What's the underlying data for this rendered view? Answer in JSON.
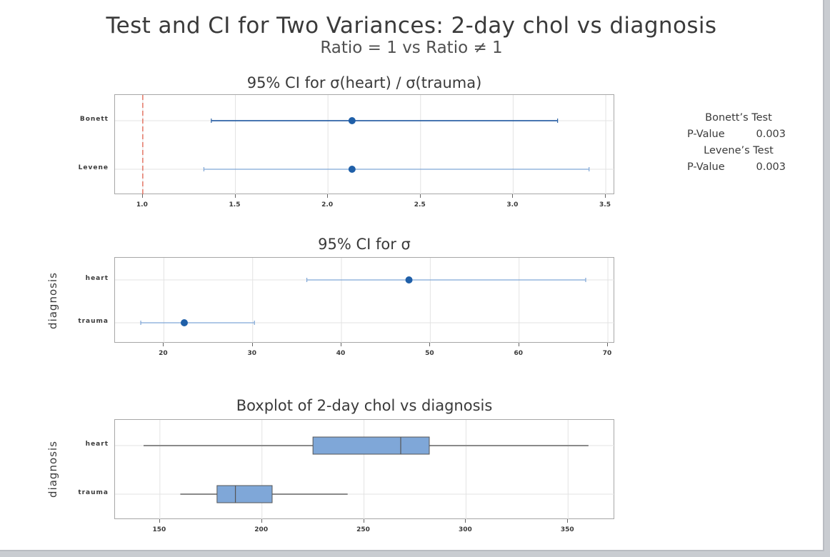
{
  "title": "Test and CI for Two Variances: 2-day chol vs diagnosis",
  "subtitle": "Ratio = 1 vs Ratio ≠ 1",
  "stats": {
    "tests": [
      {
        "name": "Bonett’s Test",
        "label": "P-Value",
        "value": "0.003"
      },
      {
        "name": "Levene’s Test",
        "label": "P-Value",
        "value": "0.003"
      }
    ]
  },
  "colors": {
    "point": "#1f5fa8",
    "ci_line_dark": "#2e63a6",
    "ci_line_light": "#7fa6d6",
    "box_fill": "#7fa7d8",
    "box_stroke": "#555555",
    "reference_line": "#e0624f",
    "grid": "#e3e3e3"
  },
  "chart_data": [
    {
      "type": "scatter",
      "title": "95% CI for σ(heart) / σ(trauma)",
      "xlabel": "",
      "ylabel": "",
      "categories": [
        "Bonett",
        "Levene"
      ],
      "xlim": [
        0.85,
        3.55
      ],
      "xticks": [
        1.0,
        1.5,
        2.0,
        2.5,
        3.0,
        3.5
      ],
      "tick_labels": [
        "1.0",
        "1.5",
        "2.0",
        "2.5",
        "3.0",
        "3.5"
      ],
      "reference_line": 1.0,
      "points": [
        {
          "category": "Bonett",
          "estimate": 2.13,
          "lower": 1.37,
          "upper": 3.24
        },
        {
          "category": "Levene",
          "estimate": 2.13,
          "lower": 1.33,
          "upper": 3.41
        }
      ],
      "grid": true
    },
    {
      "type": "scatter",
      "title": "95% CI for σ",
      "xlabel": "",
      "ylabel": "diagnosis",
      "categories": [
        "heart",
        "trauma"
      ],
      "xlim": [
        14.5,
        70.8
      ],
      "xticks": [
        20,
        30,
        40,
        50,
        60,
        70
      ],
      "tick_labels": [
        "20",
        "30",
        "40",
        "50",
        "60",
        "70"
      ],
      "points": [
        {
          "category": "heart",
          "estimate": 47.6,
          "lower": 36.1,
          "upper": 67.5
        },
        {
          "category": "trauma",
          "estimate": 22.3,
          "lower": 17.4,
          "upper": 30.2
        }
      ],
      "grid": true
    },
    {
      "type": "box",
      "title": "Boxplot of 2-day chol vs diagnosis",
      "xlabel": "",
      "ylabel": "diagnosis",
      "categories": [
        "heart",
        "trauma"
      ],
      "xlim": [
        128,
        373
      ],
      "xticks": [
        150,
        200,
        250,
        300,
        350
      ],
      "tick_labels": [
        "150",
        "200",
        "250",
        "300",
        "350"
      ],
      "boxes": [
        {
          "category": "heart",
          "min": 142,
          "q1": 225,
          "median": 268,
          "q3": 282,
          "max": 360
        },
        {
          "category": "trauma",
          "min": 160,
          "q1": 178,
          "median": 187,
          "q3": 205,
          "max": 242
        }
      ],
      "grid": true
    }
  ]
}
